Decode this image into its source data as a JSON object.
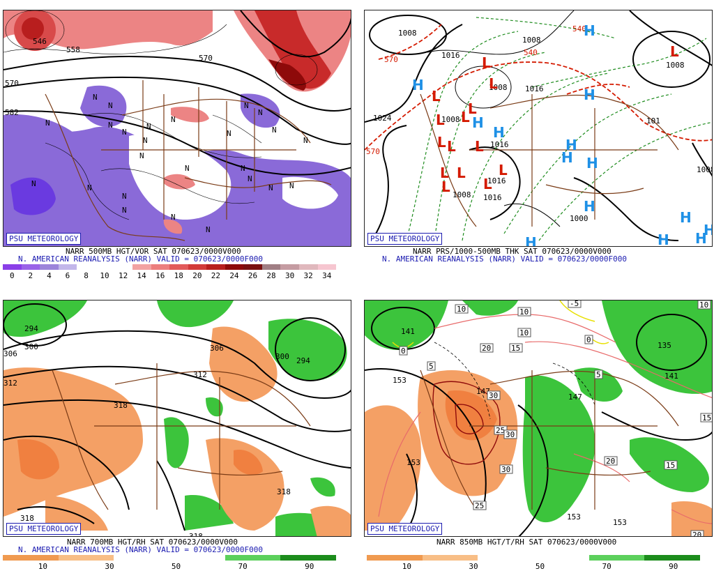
{
  "panels": {
    "tl": {
      "badge": "PSU METEOROLOGY",
      "line1": "NARR 500MB HGT/VOR SAT 070623/0000V000",
      "line2": "N. AMERICAN REANALYSIS (NARR) VALID = 070623/0000F000",
      "legend_ticks": [
        "0",
        "2",
        "4",
        "6",
        "8",
        "10",
        "12",
        "14",
        "16",
        "18",
        "20",
        "22",
        "24",
        "26",
        "28",
        "30",
        "32",
        "34"
      ],
      "legend_colors": [
        "#8a3fe8",
        "#9a62e8",
        "#9c84da",
        "#c2b6ea",
        "#ffffff",
        "#ffffff",
        "#ffffff",
        "#f2a2a2",
        "#ec7e7e",
        "#e25a5a",
        "#d23a3a",
        "#b81e1e",
        "#8e0a0a",
        "#7a1010",
        "#a07e84",
        "#c59ca2",
        "#e0b8bd",
        "#f6c6d0"
      ],
      "contour_labels": [
        "546",
        "558",
        "570",
        "570",
        "582"
      ],
      "vort_marks": [
        "N",
        "N",
        "N",
        "N",
        "N",
        "N",
        "N",
        "N",
        "N",
        "N",
        "N",
        "N",
        "N",
        "N",
        "N",
        "N",
        "N",
        "N",
        "N",
        "N",
        "N",
        "N",
        "N",
        "N",
        "N"
      ]
    },
    "tr": {
      "badge": "PSU METEOROLOGY",
      "line1": "NARR PRS/1000-500MB THK SAT 070623/0000V000",
      "line2": "N. AMERICAN REANALYSIS (NARR) VALID = 070623/0000F000",
      "pressure_labels": [
        "1008",
        "1016",
        "1008",
        "1024",
        "1008",
        "1008",
        "1016",
        "1008",
        "1016",
        "1016",
        "1000",
        "1008",
        "1016",
        "101",
        "1008"
      ],
      "thickness_labels": [
        "540",
        "570",
        "540",
        "570"
      ],
      "low_symbol": "L",
      "high_symbol": "H",
      "low_count": 15,
      "high_count": 14
    },
    "bl": {
      "badge": "PSU METEOROLOGY",
      "line1": "NARR 700MB HGT/RH SAT 070623/0000V000",
      "line2": "N. AMERICAN REANALYSIS (NARR) VALID = 070623/0000F000",
      "legend_ticks": [
        "10",
        "30",
        "50",
        "70",
        "90"
      ],
      "legend_colors": [
        "#f09a50",
        "#f8be86",
        "#ffffff",
        "#ffffff",
        "#5cd05c",
        "#1c8c1c"
      ],
      "contour_labels": [
        "294",
        "300",
        "306",
        "312",
        "318",
        "306",
        "312",
        "300",
        "294",
        "318",
        "318",
        "318"
      ]
    },
    "br": {
      "badge": "PSU METEOROLOGY",
      "line1": "NARR 850MB HGT/T/RH SAT 070623/0000V000",
      "line2": "",
      "legend_ticks": [
        "10",
        "30",
        "50",
        "70",
        "90"
      ],
      "legend_colors": [
        "#f09a50",
        "#f8be86",
        "#ffffff",
        "#ffffff",
        "#5cd05c",
        "#1c8c1c"
      ],
      "height_labels": [
        "141",
        "135",
        "141",
        "147",
        "153",
        "153",
        "147",
        "153",
        "153"
      ],
      "temp_labels": [
        "10",
        "10",
        "20",
        "15",
        "5",
        "30",
        "25",
        "30",
        "30",
        "25",
        "20",
        "15",
        "5",
        "10",
        "20",
        "0",
        "-5",
        "0",
        "10",
        "15"
      ]
    }
  },
  "colors": {
    "map_lines": "#7a3b16",
    "vort_purple": "#8a6ad8",
    "vort_red": "#d84a4a",
    "rh_orange": "#f4a065",
    "rh_green": "#3cc43c",
    "low_red": "#d41a00",
    "high_blue": "#1e90e6",
    "thickness_red": "#d41a00",
    "pressure_dash": "#1e8c1e"
  }
}
